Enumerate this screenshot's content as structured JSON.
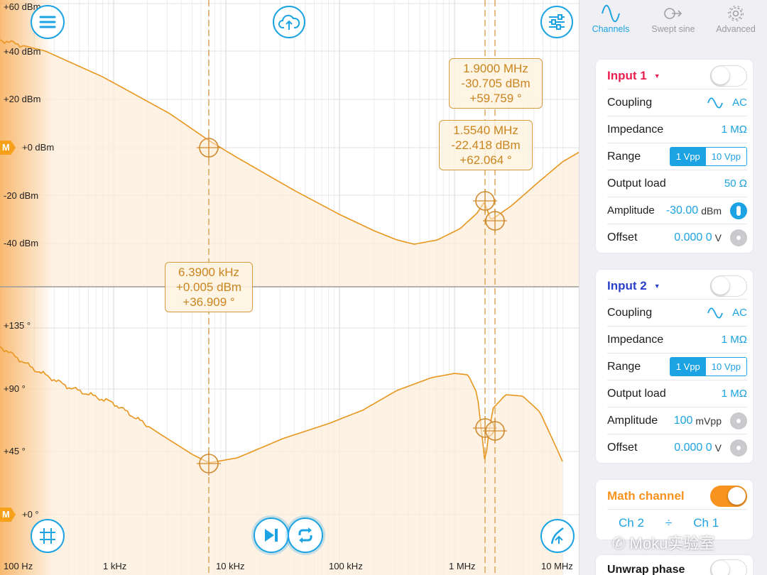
{
  "plot": {
    "magnitude_axis": [
      "+60 dBm",
      "+40 dBm",
      "+20 dBm",
      "+0 dBm",
      "-20 dBm",
      "-40 dBm"
    ],
    "phase_axis": [
      "+135 °",
      "+90 °",
      "+45 °",
      "+0 °"
    ],
    "freq_axis": [
      "100 Hz",
      "1 kHz",
      "10 kHz",
      "100 kHz",
      "1 MHz",
      "10 MHz"
    ],
    "marker_badge": "M",
    "trace_color": "#e8961e",
    "cursors": [
      {
        "freq": "1.9000 MHz",
        "mag": "-30.705 dBm",
        "phase": "+59.759 °"
      },
      {
        "freq": "1.5540 MHz",
        "mag": "-22.418 dBm",
        "phase": "+62.064 °"
      },
      {
        "freq": "6.3900 kHz",
        "mag": "+0.005 dBm",
        "phase": "+36.909 °"
      }
    ]
  },
  "controls": {
    "menu_icon": "menu-icon",
    "upload_icon": "cloud-upload-icon",
    "settings_icon": "sliders-icon",
    "grid_icon": "grid-icon",
    "play_icon": "play-skip-icon",
    "repeat_icon": "repeat-icon",
    "autoscale_icon": "autoscale-icon"
  },
  "tabs": [
    {
      "label": "Channels",
      "icon": "sine-wave-icon",
      "active": true
    },
    {
      "label": "Swept sine",
      "icon": "swept-sine-icon",
      "active": false
    },
    {
      "label": "Advanced",
      "icon": "gear-icon",
      "active": false
    }
  ],
  "input1": {
    "title": "Input 1",
    "color": "#e8204f",
    "enabled": false,
    "coupling_label": "Coupling",
    "coupling_value": "AC",
    "impedance_label": "Impedance",
    "impedance_value": "1 MΩ",
    "range_label": "Range",
    "range_options": [
      "1 Vpp",
      "10 Vpp"
    ],
    "range_selected": "1 Vpp",
    "output_load_label": "Output load",
    "output_load_value": "50 Ω",
    "amplitude_label": "Amplitude",
    "amplitude_value": "-30.00",
    "amplitude_unit": "dBm",
    "offset_label": "Offset",
    "offset_value": "0.000 0",
    "offset_unit": "V"
  },
  "input2": {
    "title": "Input 2",
    "color": "#2b3fc9",
    "enabled": false,
    "coupling_label": "Coupling",
    "coupling_value": "AC",
    "impedance_label": "Impedance",
    "impedance_value": "1 MΩ",
    "range_label": "Range",
    "range_options": [
      "1 Vpp",
      "10 Vpp"
    ],
    "range_selected": "1 Vpp",
    "output_load_label": "Output load",
    "output_load_value": "1 MΩ",
    "amplitude_label": "Amplitude",
    "amplitude_value": "100",
    "amplitude_unit": "mVpp",
    "offset_label": "Offset",
    "offset_value": "0.000 0",
    "offset_unit": "V"
  },
  "math": {
    "title": "Math channel",
    "color": "#f7931e",
    "enabled": true,
    "operand_a": "Ch 2",
    "operator": "÷",
    "operand_b": "Ch 1"
  },
  "unwrap": {
    "label": "Unwrap phase",
    "enabled": false
  },
  "watermark": "Moku实验室"
}
